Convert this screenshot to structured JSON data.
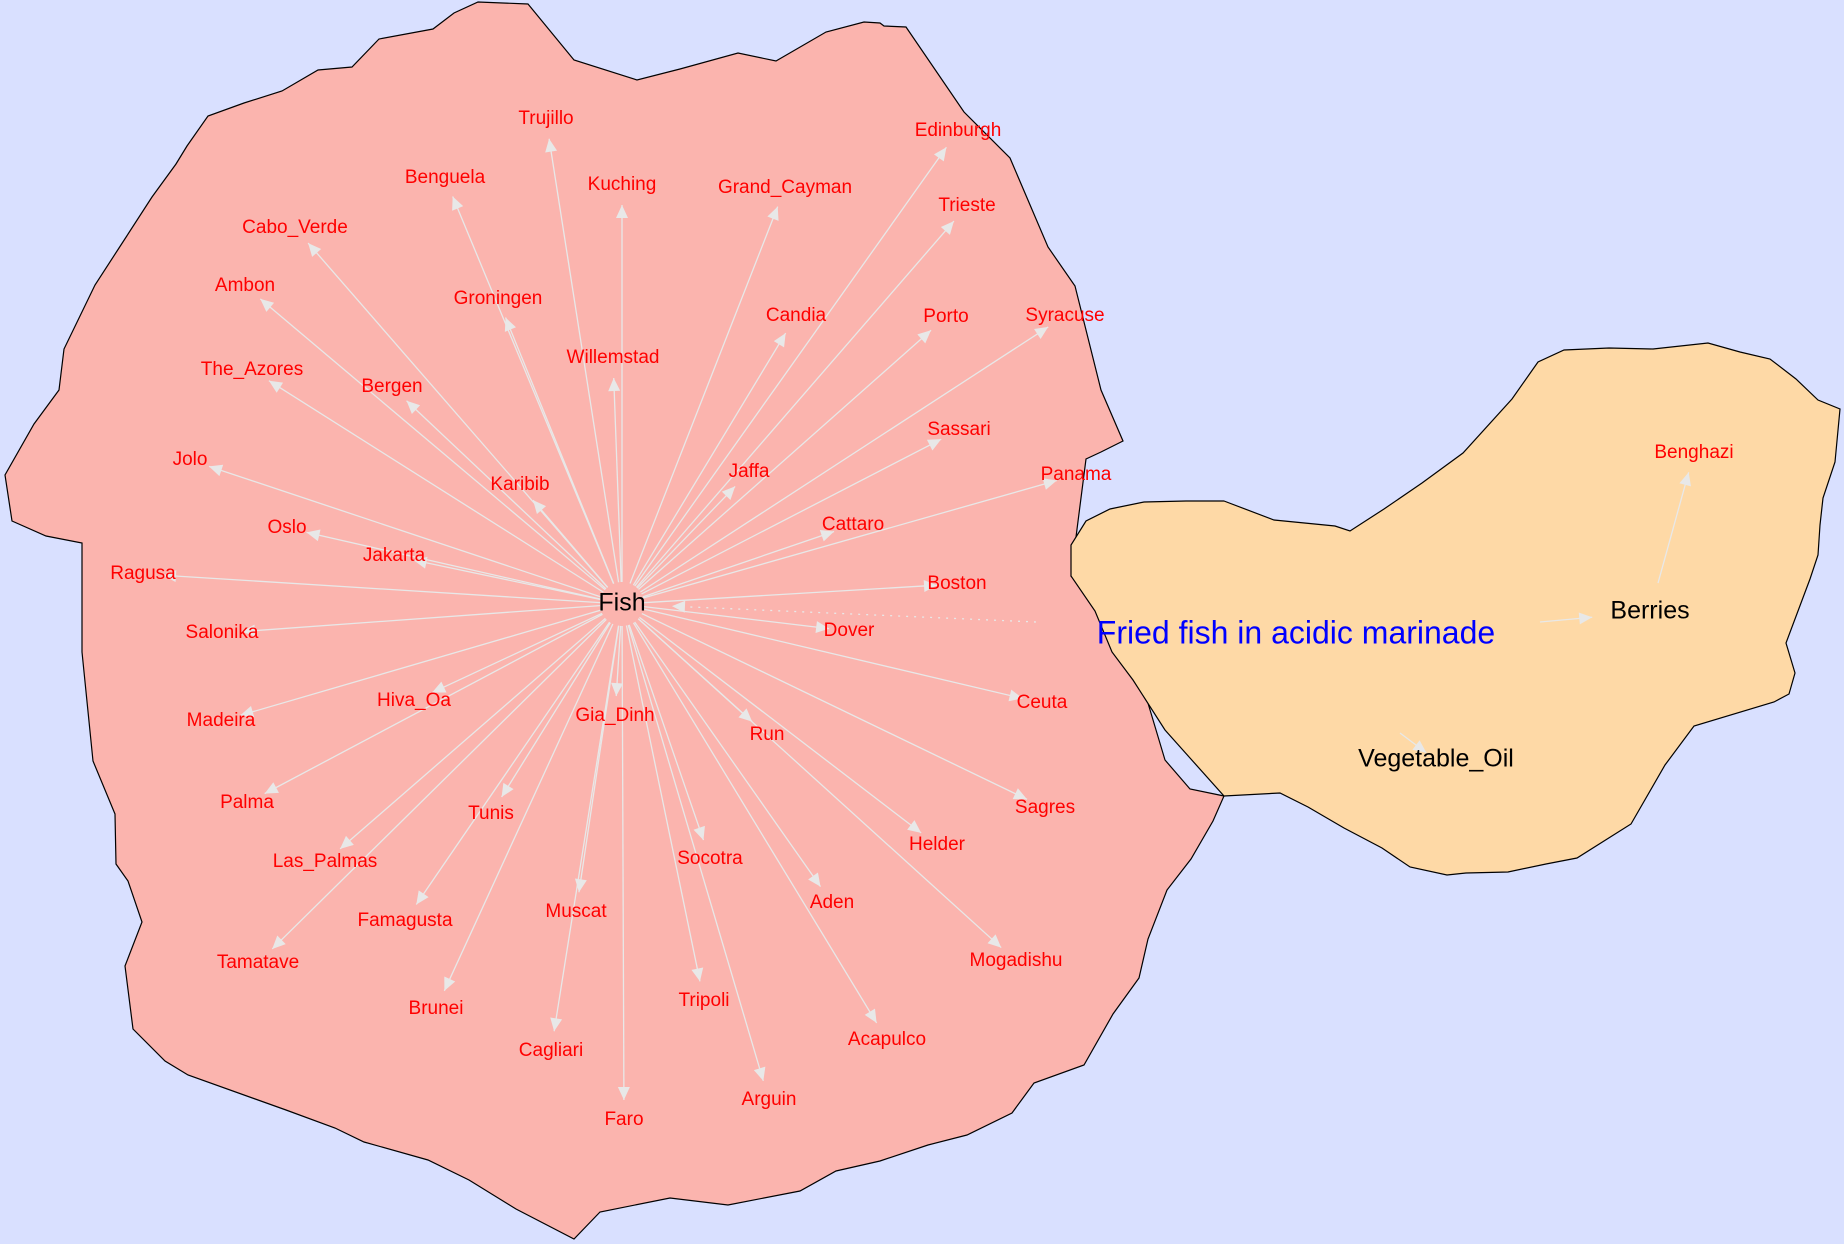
{
  "title": "Fried fish in acidic marinade",
  "colors": {
    "background": "#d9e0ff",
    "fish_region": "#fbb4ae",
    "marinade_region": "#fed9a6",
    "city_text": "#ff0000",
    "hub_text": "#000000",
    "title_text": "#0000ff",
    "edge": "#e8e8e8"
  },
  "hubs": {
    "fish": "Fish",
    "berries": "Berries",
    "vegetable_oil": "Vegetable_Oil"
  },
  "fish_cities": [
    "Trujillo",
    "Edinburgh",
    "Benguela",
    "Kuching",
    "Grand_Cayman",
    "Cabo_Verde",
    "Trieste",
    "Ambon",
    "Groningen",
    "Candia",
    "Porto",
    "Syracuse",
    "Willemstad",
    "The_Azores",
    "Bergen",
    "Sassari",
    "Jolo",
    "Jaffa",
    "Karibib",
    "Panama",
    "Oslo",
    "Cattaro",
    "Jakarta",
    "Ragusa",
    "Boston",
    "Dover",
    "Salonika",
    "Hiva_Oa",
    "Ceuta",
    "Gia_Dinh",
    "Madeira",
    "Run",
    "Palma",
    "Sagres",
    "Tunis",
    "Helder",
    "Las_Palmas",
    "Socotra",
    "Aden",
    "Famagusta",
    "Muscat",
    "Mogadishu",
    "Tamatave",
    "Tripoli",
    "Brunei",
    "Acapulco",
    "Cagliari",
    "Arguin",
    "Faro"
  ],
  "berries_cities": [
    "Benghazi"
  ]
}
